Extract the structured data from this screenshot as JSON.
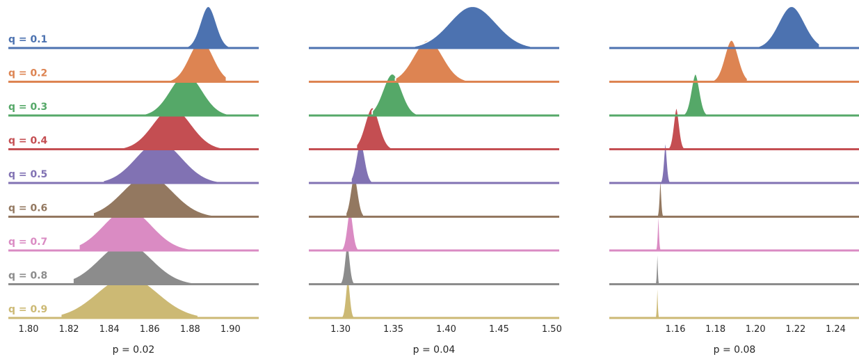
{
  "chart_data": {
    "type": "ridgeline",
    "colors": [
      "#4c72b0",
      "#dd8452",
      "#55a868",
      "#c44e52",
      "#8172b3",
      "#937860",
      "#da8bc3",
      "#8c8c8c",
      "#ccb974"
    ],
    "row_labels": [
      "q = 0.1",
      "q = 0.2",
      "q = 0.3",
      "q = 0.4",
      "q = 0.5",
      "q = 0.6",
      "q = 0.7",
      "q = 0.8",
      "q = 0.9"
    ],
    "panels": [
      {
        "xlabel": "p = 0.02",
        "xlim": [
          1.79,
          1.914
        ],
        "ticks": [
          1.8,
          1.82,
          1.84,
          1.86,
          1.88,
          1.9
        ],
        "tick_labels": [
          "1.80",
          "1.82",
          "1.84",
          "1.86",
          "1.88",
          "1.90"
        ],
        "series": [
          {
            "mean": 1.889,
            "sd": 0.004,
            "range": [
              1.878,
              1.902
            ]
          },
          {
            "mean": 1.8855,
            "sd": 0.006,
            "range": [
              1.868,
              1.898
            ]
          },
          {
            "mean": 1.878,
            "sd": 0.008,
            "range": [
              1.855,
              1.9
            ]
          },
          {
            "mean": 1.871,
            "sd": 0.0095,
            "range": [
              1.843,
              1.9
            ]
          },
          {
            "mean": 1.8645,
            "sd": 0.0115,
            "range": [
              1.837,
              1.905
            ]
          },
          {
            "mean": 1.859,
            "sd": 0.0125,
            "range": [
              1.832,
              1.9
            ]
          },
          {
            "mean": 1.849,
            "sd": 0.012,
            "range": [
              1.825,
              1.882
            ]
          },
          {
            "mean": 1.848,
            "sd": 0.013,
            "range": [
              1.822,
              1.882
            ]
          },
          {
            "mean": 1.849,
            "sd": 0.015,
            "range": [
              1.816,
              1.884
            ]
          }
        ]
      },
      {
        "xlabel": "p = 0.04",
        "xlim": [
          1.27,
          1.507
        ],
        "ticks": [
          1.3,
          1.35,
          1.4,
          1.45,
          1.5
        ],
        "tick_labels": [
          "1.30",
          "1.35",
          "1.40",
          "1.45",
          "1.50"
        ],
        "series": [
          {
            "mean": 1.425,
            "sd": 0.022,
            "range": [
              1.37,
              1.48
            ]
          },
          {
            "mean": 1.383,
            "sd": 0.014,
            "range": [
              1.352,
              1.43
            ]
          },
          {
            "mean": 1.349,
            "sd": 0.009,
            "range": [
              1.33,
              1.372
            ]
          },
          {
            "mean": 1.33,
            "sd": 0.007,
            "range": [
              1.315,
              1.35
            ]
          },
          {
            "mean": 1.319,
            "sd": 0.0042,
            "range": [
              1.31,
              1.33
            ]
          },
          {
            "mean": 1.313,
            "sd": 0.0036,
            "range": [
              1.305,
              1.322
            ]
          },
          {
            "mean": 1.309,
            "sd": 0.003,
            "range": [
              1.301,
              1.318
            ]
          },
          {
            "mean": 1.3065,
            "sd": 0.0025,
            "range": [
              1.3,
              1.314
            ]
          },
          {
            "mean": 1.307,
            "sd": 0.0022,
            "range": [
              1.301,
              1.313
            ]
          }
        ]
      },
      {
        "xlabel": "p = 0.08",
        "xlim": [
          1.127,
          1.252
        ],
        "ticks": [
          1.16,
          1.18,
          1.2,
          1.22,
          1.24
        ],
        "tick_labels": [
          "1.16",
          "1.18",
          "1.20",
          "1.22",
          "1.24"
        ],
        "series": [
          {
            "mean": 1.218,
            "sd": 0.0065,
            "range": [
              1.2,
              1.232
            ]
          },
          {
            "mean": 1.188,
            "sd": 0.0035,
            "range": [
              1.177,
              1.196
            ]
          },
          {
            "mean": 1.17,
            "sd": 0.0022,
            "range": [
              1.163,
              1.177
            ]
          },
          {
            "mean": 1.1605,
            "sd": 0.0015,
            "range": [
              1.156,
              1.166
            ]
          },
          {
            "mean": 1.155,
            "sd": 0.0009,
            "range": [
              1.152,
              1.158
            ]
          },
          {
            "mean": 1.1525,
            "sd": 0.0006,
            "range": [
              1.151,
              1.155
            ]
          },
          {
            "mean": 1.1515,
            "sd": 0.0005,
            "range": [
              1.15,
              1.153
            ]
          },
          {
            "mean": 1.151,
            "sd": 0.0004,
            "range": [
              1.15,
              1.152
            ]
          },
          {
            "mean": 1.151,
            "sd": 0.0004,
            "range": [
              1.15,
              1.152
            ]
          }
        ]
      }
    ]
  }
}
